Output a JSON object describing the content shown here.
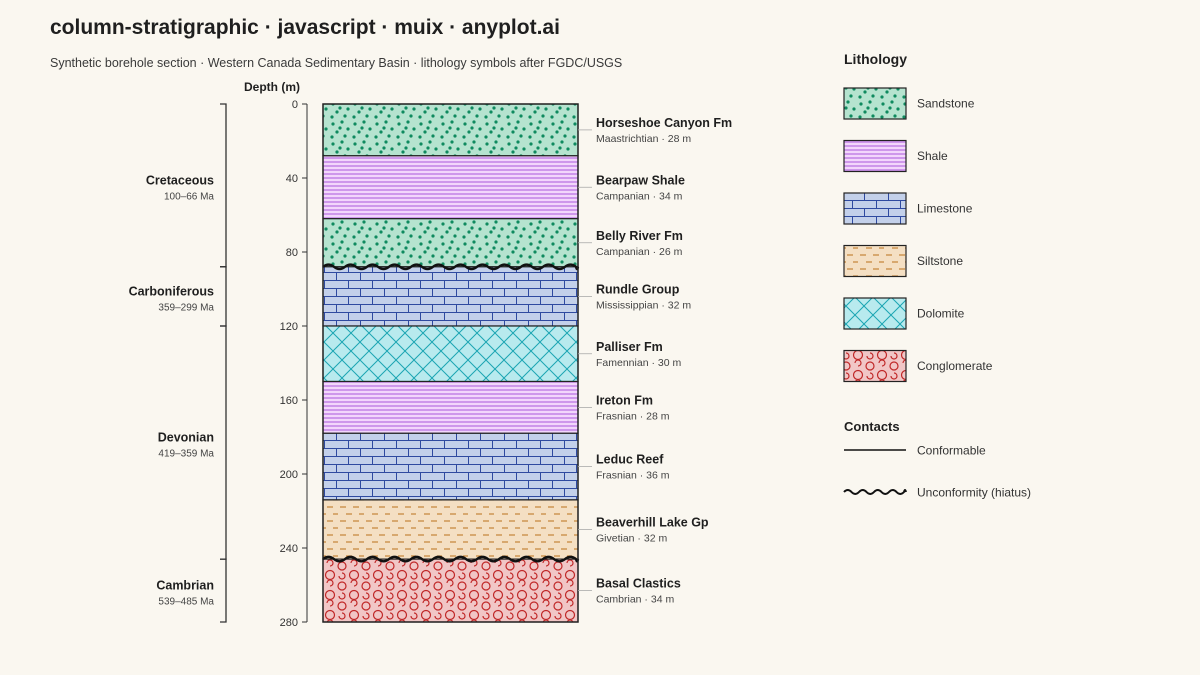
{
  "title": "column-stratigraphic · javascript · muix · anyplot.ai",
  "subtitle": "Synthetic borehole section · Western Canada Sedimentary Basin · lithology symbols after FGDC/USGS",
  "chart_data": {
    "type": "stratigraphic-column",
    "ylabel": "Depth (m)",
    "ylim": [
      0,
      280
    ],
    "y_ticks": [
      0,
      40,
      80,
      120,
      160,
      200,
      240,
      280
    ],
    "units": [
      {
        "name": "Horseshoe Canyon Fm",
        "age": "Maastrichtian",
        "thickness_label": "28 m",
        "top": 0,
        "bottom": 28,
        "lithology": "Sandstone",
        "base_contact": "conformable"
      },
      {
        "name": "Bearpaw Shale",
        "age": "Campanian",
        "thickness_label": "34 m",
        "top": 28,
        "bottom": 62,
        "lithology": "Shale",
        "base_contact": "conformable"
      },
      {
        "name": "Belly River Fm",
        "age": "Campanian",
        "thickness_label": "26 m",
        "top": 62,
        "bottom": 88,
        "lithology": "Sandstone",
        "base_contact": "unconformity"
      },
      {
        "name": "Rundle Group",
        "age": "Mississippian",
        "thickness_label": "32 m",
        "top": 88,
        "bottom": 120,
        "lithology": "Limestone",
        "base_contact": "conformable"
      },
      {
        "name": "Palliser Fm",
        "age": "Famennian",
        "thickness_label": "30 m",
        "top": 120,
        "bottom": 150,
        "lithology": "Dolomite",
        "base_contact": "conformable"
      },
      {
        "name": "Ireton Fm",
        "age": "Frasnian",
        "thickness_label": "28 m",
        "top": 150,
        "bottom": 178,
        "lithology": "Shale",
        "base_contact": "conformable"
      },
      {
        "name": "Leduc Reef",
        "age": "Frasnian",
        "thickness_label": "36 m",
        "top": 178,
        "bottom": 214,
        "lithology": "Limestone",
        "base_contact": "conformable"
      },
      {
        "name": "Beaverhill Lake Gp",
        "age": "Givetian",
        "thickness_label": "32 m",
        "top": 214,
        "bottom": 246,
        "lithology": "Siltstone",
        "base_contact": "unconformity"
      },
      {
        "name": "Basal Clastics",
        "age": "Cambrian",
        "thickness_label": "34 m",
        "top": 246,
        "bottom": 280,
        "lithology": "Conglomerate",
        "base_contact": "conformable"
      }
    ],
    "periods": [
      {
        "name": "Cretaceous",
        "range": "100–66 Ma",
        "top": 0,
        "bottom": 88
      },
      {
        "name": "Carboniferous",
        "range": "359–299 Ma",
        "top": 88,
        "bottom": 120
      },
      {
        "name": "Devonian",
        "range": "419–359 Ma",
        "top": 120,
        "bottom": 246
      },
      {
        "name": "Cambrian",
        "range": "539–485 Ma",
        "top": 246,
        "bottom": 280
      }
    ],
    "legend": {
      "lithology_title": "Lithology",
      "lithologies": [
        "Sandstone",
        "Shale",
        "Limestone",
        "Siltstone",
        "Dolomite",
        "Conglomerate"
      ],
      "contacts_title": "Contacts",
      "contacts": [
        {
          "label": "Conformable",
          "type": "conformable"
        },
        {
          "label": "Unconformity (hiatus)",
          "type": "unconformity"
        }
      ]
    },
    "colors": {
      "Sandstone": {
        "fill": "#b5e3cf",
        "mark": "#0f8a5f"
      },
      "Shale": {
        "fill": "#f2d6fb",
        "mark": "#a24ad8"
      },
      "Limestone": {
        "fill": "#c3d0ea",
        "mark": "#2f4aa0"
      },
      "Siltstone": {
        "fill": "#f4dfc3",
        "mark": "#c07a2a"
      },
      "Dolomite": {
        "fill": "#b8eaee",
        "mark": "#1ba6b3"
      },
      "Conglomerate": {
        "fill": "#f1c6c6",
        "mark": "#c02828"
      }
    }
  }
}
